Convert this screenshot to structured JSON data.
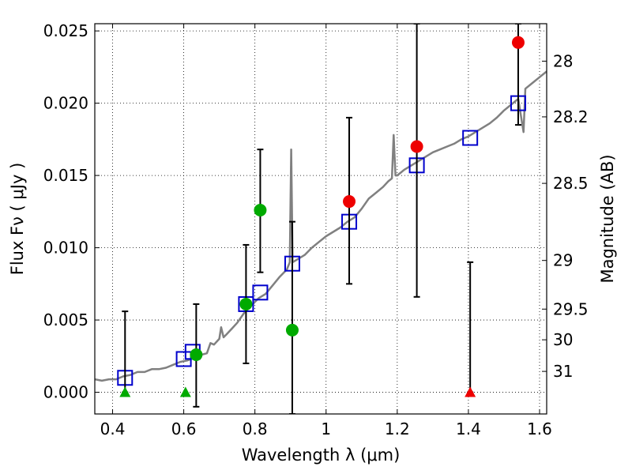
{
  "chart_data": {
    "type": "scatter",
    "xlabel": "Wavelength  λ (μm)",
    "ylabel": "Flux  Fν  ( μJy )",
    "ylabel_right": "Magnitude (AB)",
    "xlim": [
      0.35,
      1.62
    ],
    "ylim": [
      -0.0015,
      0.0255
    ],
    "grid": true,
    "x_ticks": [
      0.4,
      0.6,
      0.8,
      1.0,
      1.2,
      1.4,
      1.6
    ],
    "x_tick_labels": [
      "0.4",
      "0.6",
      "0.8",
      "1",
      "1.2",
      "1.4",
      "1.6"
    ],
    "y_ticks": [
      0.0,
      0.005,
      0.01,
      0.015,
      0.02,
      0.025
    ],
    "y_tick_labels": [
      "0.000",
      "0.005",
      "0.010",
      "0.015",
      "0.020",
      "0.025"
    ],
    "right_ticks": [
      {
        "mag": 28,
        "label": "28"
      },
      {
        "mag": 28.2,
        "label": "28.2"
      },
      {
        "mag": 28.5,
        "label": "28.5"
      },
      {
        "mag": 29,
        "label": "29"
      },
      {
        "mag": 29.5,
        "label": "29.5"
      },
      {
        "mag": 30,
        "label": "30"
      },
      {
        "mag": 31,
        "label": "31"
      }
    ],
    "series": [
      {
        "kind": "line",
        "color": "#808080",
        "points": [
          [
            0.35,
            0.0009
          ],
          [
            0.37,
            0.0008
          ],
          [
            0.39,
            0.0009
          ],
          [
            0.41,
            0.0009
          ],
          [
            0.43,
            0.0011
          ],
          [
            0.45,
            0.0012
          ],
          [
            0.47,
            0.0014
          ],
          [
            0.49,
            0.0014
          ],
          [
            0.51,
            0.0016
          ],
          [
            0.53,
            0.0016
          ],
          [
            0.55,
            0.0017
          ],
          [
            0.57,
            0.0019
          ],
          [
            0.59,
            0.0021
          ],
          [
            0.61,
            0.0022
          ],
          [
            0.63,
            0.0024
          ],
          [
            0.65,
            0.0026
          ],
          [
            0.665,
            0.0027
          ],
          [
            0.675,
            0.0034
          ],
          [
            0.685,
            0.0033
          ],
          [
            0.7,
            0.0037
          ],
          [
            0.705,
            0.0045
          ],
          [
            0.712,
            0.0038
          ],
          [
            0.72,
            0.004
          ],
          [
            0.735,
            0.0044
          ],
          [
            0.75,
            0.0048
          ],
          [
            0.77,
            0.0055
          ],
          [
            0.79,
            0.006
          ],
          [
            0.81,
            0.0065
          ],
          [
            0.83,
            0.0068
          ],
          [
            0.85,
            0.0074
          ],
          [
            0.87,
            0.008
          ],
          [
            0.89,
            0.0085
          ],
          [
            0.898,
            0.009
          ],
          [
            0.902,
            0.0168
          ],
          [
            0.906,
            0.009
          ],
          [
            0.92,
            0.0092
          ],
          [
            0.94,
            0.0095
          ],
          [
            0.96,
            0.01
          ],
          [
            0.98,
            0.0104
          ],
          [
            1.0,
            0.0108
          ],
          [
            1.02,
            0.0111
          ],
          [
            1.04,
            0.0114
          ],
          [
            1.06,
            0.0118
          ],
          [
            1.08,
            0.0121
          ],
          [
            1.1,
            0.0127
          ],
          [
            1.12,
            0.0134
          ],
          [
            1.14,
            0.0138
          ],
          [
            1.16,
            0.0142
          ],
          [
            1.175,
            0.0146
          ],
          [
            1.185,
            0.0148
          ],
          [
            1.19,
            0.0178
          ],
          [
            1.195,
            0.015
          ],
          [
            1.2,
            0.015
          ],
          [
            1.21,
            0.0152
          ],
          [
            1.22,
            0.0154
          ],
          [
            1.24,
            0.0157
          ],
          [
            1.26,
            0.016
          ],
          [
            1.28,
            0.0163
          ],
          [
            1.3,
            0.0166
          ],
          [
            1.32,
            0.0168
          ],
          [
            1.34,
            0.017
          ],
          [
            1.36,
            0.0172
          ],
          [
            1.38,
            0.0175
          ],
          [
            1.4,
            0.0177
          ],
          [
            1.42,
            0.018
          ],
          [
            1.44,
            0.0183
          ],
          [
            1.46,
            0.0186
          ],
          [
            1.48,
            0.019
          ],
          [
            1.5,
            0.0195
          ],
          [
            1.52,
            0.0199
          ],
          [
            1.54,
            0.0203
          ],
          [
            1.555,
            0.018
          ],
          [
            1.56,
            0.021
          ],
          [
            1.58,
            0.0214
          ],
          [
            1.6,
            0.0218
          ],
          [
            1.62,
            0.0222
          ]
        ]
      },
      {
        "kind": "squares",
        "color": "#0000cc",
        "points": [
          [
            0.435,
            0.001
          ],
          [
            0.6,
            0.0023
          ],
          [
            0.625,
            0.0028
          ],
          [
            0.775,
            0.0061
          ],
          [
            0.815,
            0.0069
          ],
          [
            0.905,
            0.0089
          ],
          [
            1.065,
            0.0118
          ],
          [
            1.255,
            0.0157
          ],
          [
            1.405,
            0.0176
          ],
          [
            1.54,
            0.02
          ]
        ]
      },
      {
        "kind": "errorbars",
        "color": "#000000",
        "points": [
          {
            "x": 0.435,
            "lo": 0.0,
            "hi": 0.0056
          },
          {
            "x": 0.635,
            "lo": -0.001,
            "hi": 0.0061
          },
          {
            "x": 0.775,
            "lo": 0.002,
            "hi": 0.0102
          },
          {
            "x": 0.815,
            "lo": 0.0083,
            "hi": 0.0168
          },
          {
            "x": 0.905,
            "lo": -0.0015,
            "hi": 0.0118
          },
          {
            "x": 1.065,
            "lo": 0.0075,
            "hi": 0.019
          },
          {
            "x": 1.255,
            "lo": 0.0066,
            "hi": 0.0255
          },
          {
            "x": 1.405,
            "lo": 0.0,
            "hi": 0.009
          },
          {
            "x": 1.54,
            "lo": 0.0185,
            "hi": 0.0255
          }
        ]
      },
      {
        "kind": "circles",
        "color": "#00aa00",
        "points": [
          [
            0.635,
            0.0026
          ],
          [
            0.775,
            0.0061
          ],
          [
            0.815,
            0.0126
          ],
          [
            0.905,
            0.0043
          ]
        ]
      },
      {
        "kind": "circles",
        "color": "#ee0000",
        "points": [
          [
            1.065,
            0.0132
          ],
          [
            1.255,
            0.017
          ],
          [
            1.54,
            0.0242
          ]
        ]
      },
      {
        "kind": "triangles",
        "color": "#00aa00",
        "points": [
          [
            0.435,
            0.0
          ],
          [
            0.605,
            0.0
          ]
        ]
      },
      {
        "kind": "triangles",
        "color": "#ee0000",
        "points": [
          [
            1.405,
            0.0
          ]
        ]
      }
    ]
  }
}
